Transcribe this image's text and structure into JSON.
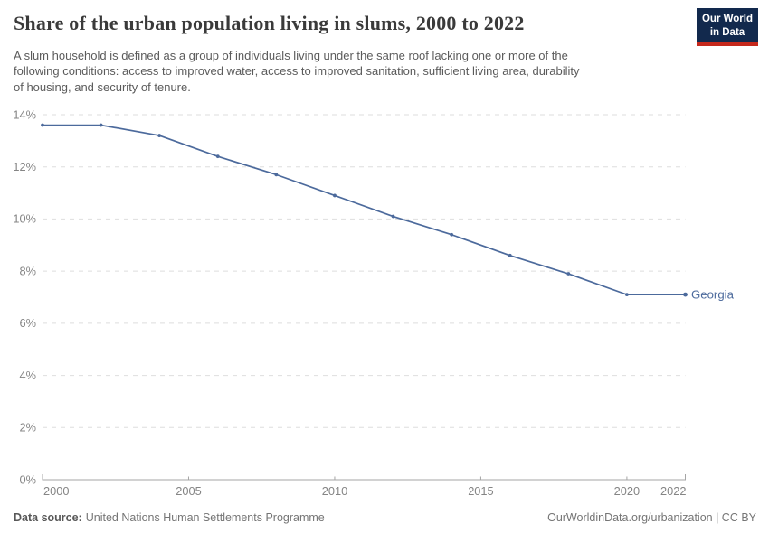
{
  "header": {
    "title": "Share of the urban population living in slums, 2000 to 2022",
    "subtitle_lines": [
      "A slum household is defined as a group of individuals living under the same roof lacking one or more of the",
      "following conditions: access to improved water, access to improved sanitation, sufficient living area, durability",
      "of housing, and security of tenure."
    ],
    "logo": {
      "line1": "Our World",
      "line2": "in Data",
      "bg_color": "#12294d",
      "stripe_color": "#c5281c"
    }
  },
  "chart_data": {
    "type": "line",
    "title": "Share of the urban population living in slums, 2000 to 2022",
    "x": [
      2000,
      2002,
      2004,
      2006,
      2008,
      2010,
      2012,
      2014,
      2016,
      2018,
      2020,
      2022
    ],
    "series": [
      {
        "name": "Georgia",
        "color": "#4C6A9C",
        "values": [
          13.6,
          13.6,
          13.2,
          12.4,
          11.7,
          10.9,
          10.1,
          9.4,
          8.6,
          7.9,
          7.1,
          7.1
        ]
      }
    ],
    "xlabel": "",
    "ylabel": "",
    "xlim": [
      2000,
      2022
    ],
    "ylim": [
      0,
      14
    ],
    "yticks": [
      0,
      2,
      4,
      6,
      8,
      10,
      12,
      14
    ],
    "ytick_suffix": "%",
    "xticks": [
      2000,
      2005,
      2010,
      2015,
      2020,
      2022
    ],
    "grid": "horizontal-dashed",
    "legend": "end-of-line-label",
    "end_label": "Georgia"
  },
  "footer": {
    "source_label": "Data source:",
    "source_value": "United Nations Human Settlements Programme",
    "credit": "OurWorldinData.org/urbanization | CC BY"
  }
}
